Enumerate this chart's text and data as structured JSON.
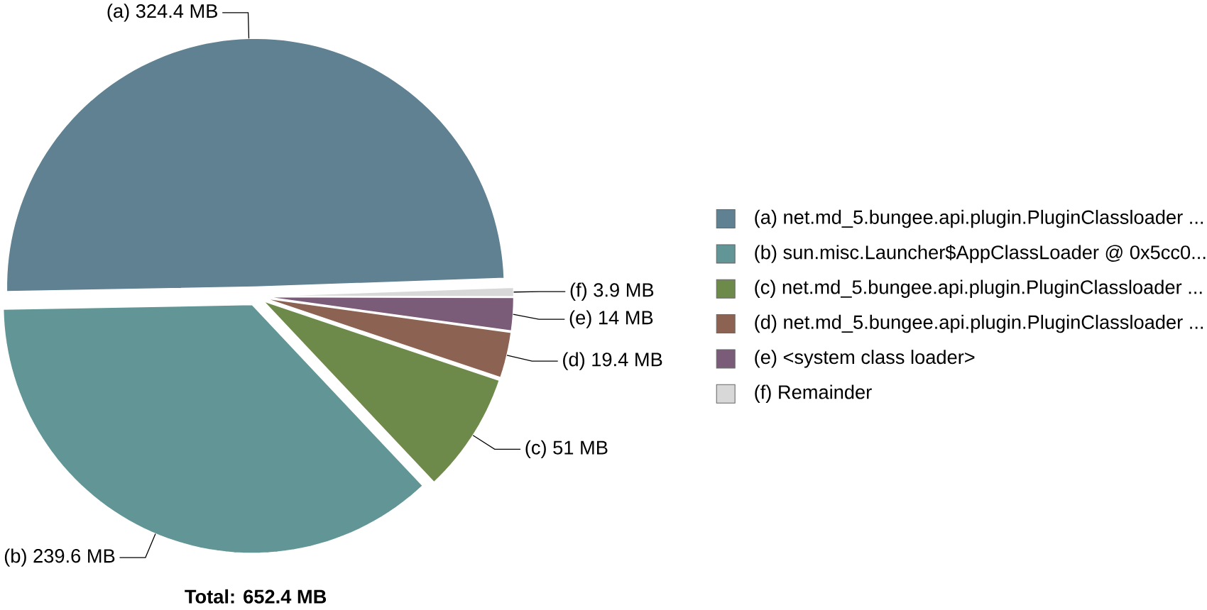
{
  "chart_data": {
    "type": "pie",
    "legend": "right",
    "categories": [
      "(a)  net.md_5.bungee.api.plugin.PluginClassloader ...",
      "(b)  sun.misc.Launcher$AppClassLoader @ 0x5cc0...",
      "(c)  net.md_5.bungee.api.plugin.PluginClassloader ...",
      "(d)  net.md_5.bungee.api.plugin.PluginClassloader ...",
      "(e)  <system class loader>",
      "(f)  Remainder"
    ],
    "values": [
      324.4,
      239.6,
      51,
      19.4,
      14,
      3.9
    ],
    "colors": [
      "#5f8191",
      "#629595",
      "#6e8a4b",
      "#8c6352",
      "#7a5c78",
      "#d8d8d8"
    ],
    "value_labels": [
      "(a)  324.4 MB",
      "(b)  239.6 MB",
      "(c)  51 MB",
      "(d)  19.4 MB",
      "(e)  14 MB",
      "(f)  3.9 MB"
    ],
    "annotations": [
      "Total: 652.4 MB"
    ]
  }
}
